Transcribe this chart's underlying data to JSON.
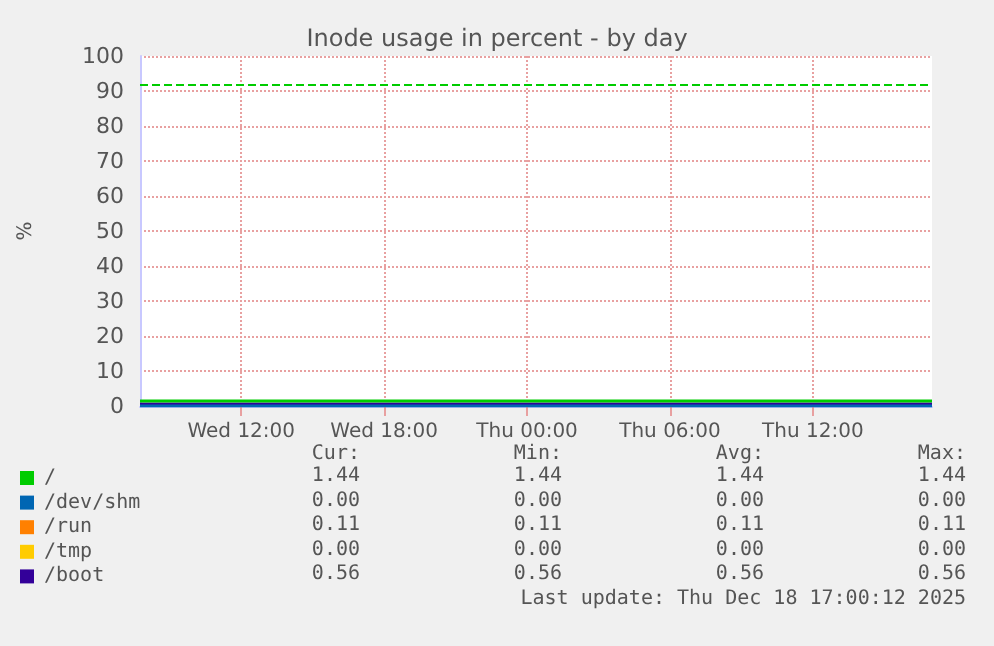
{
  "chart_data": {
    "type": "line",
    "title": "Inode usage in percent - by day",
    "ylabel": "%",
    "x": [
      "2025-12-17T07:45",
      "2025-12-18T17:00"
    ],
    "xlim": [
      "2025-12-17T07:45",
      "2025-12-18T17:00"
    ],
    "xticks": [
      {
        "value": "2025-12-17T12:00",
        "label": "Wed 12:00"
      },
      {
        "value": "2025-12-17T18:00",
        "label": "Wed 18:00"
      },
      {
        "value": "2025-12-18T00:00",
        "label": "Thu 00:00"
      },
      {
        "value": "2025-12-18T06:00",
        "label": "Thu 06:00"
      },
      {
        "value": "2025-12-18T12:00",
        "label": "Thu 12:00"
      }
    ],
    "ylim": [
      0,
      100
    ],
    "yticks": [
      0,
      10,
      20,
      30,
      40,
      50,
      60,
      70,
      80,
      90,
      100
    ],
    "series": [
      {
        "name": "/",
        "color": "#00cc00",
        "values": [
          1.44,
          1.44
        ]
      },
      {
        "name": "/dev/shm",
        "color": "#0066b3",
        "values": [
          0,
          0
        ]
      },
      {
        "name": "/run",
        "color": "#ff8000",
        "values": [
          null,
          null
        ]
      },
      {
        "name": "/tmp",
        "color": "#ffcc00",
        "values": [
          null,
          null
        ]
      },
      {
        "name": "/boot",
        "color": "#330099",
        "values": [
          0.56,
          0.56
        ]
      }
    ],
    "ref_lines": [
      {
        "axis": "y",
        "value": 92,
        "color": "#00cc00",
        "line_style": "dashed"
      }
    ],
    "annotations": [
      "Cur:",
      "Min:",
      "Avg:",
      "Max:",
      "1.44",
      "1.44",
      "1.44",
      "1.44",
      "0.00",
      "0.00",
      "0.00",
      "0.00",
      "0.11",
      "0.11",
      "0.11",
      "0.11",
      "0.00",
      "0.00",
      "0.00",
      "0.00",
      "0.56",
      "0.56",
      "0.56",
      "0.56",
      "Last update: Thu Dec 18 17:00:12 2025"
    ],
    "grid": true,
    "legend": "bottom",
    "line_style": "solid"
  }
}
